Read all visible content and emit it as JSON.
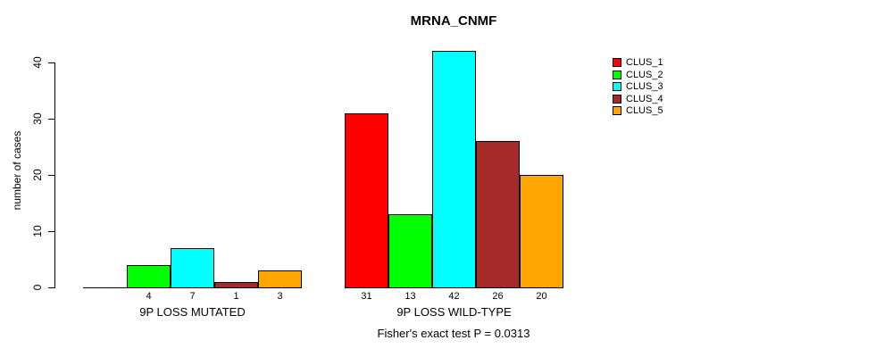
{
  "title": "MRNA_CNMF",
  "footer": "Fisher's exact test P = 0.0313",
  "chart_data": {
    "type": "bar",
    "title": "MRNA_CNMF",
    "ylabel": "number of cases",
    "xlabel": "",
    "yticks": [
      0,
      10,
      20,
      30,
      40
    ],
    "ylim": [
      0,
      42
    ],
    "grid": false,
    "legend_position": "right",
    "categories": [
      "9P LOSS MUTATED",
      "9P LOSS WILD-TYPE"
    ],
    "series": [
      {
        "name": "CLUS_1",
        "color": "#FF0000",
        "values": [
          0,
          31
        ]
      },
      {
        "name": "CLUS_2",
        "color": "#00FF00",
        "values": [
          4,
          13
        ]
      },
      {
        "name": "CLUS_3",
        "color": "#00FFFF",
        "values": [
          7,
          42
        ]
      },
      {
        "name": "CLUS_4",
        "color": "#A52A2A",
        "values": [
          1,
          26
        ]
      },
      {
        "name": "CLUS_5",
        "color": "#FFA500",
        "values": [
          3,
          20
        ]
      }
    ],
    "bar_value_labels": [
      "4",
      "7",
      "1",
      "3",
      "31",
      "13",
      "42",
      "26",
      "20"
    ],
    "annotation": "Fisher's exact test P = 0.0313"
  }
}
